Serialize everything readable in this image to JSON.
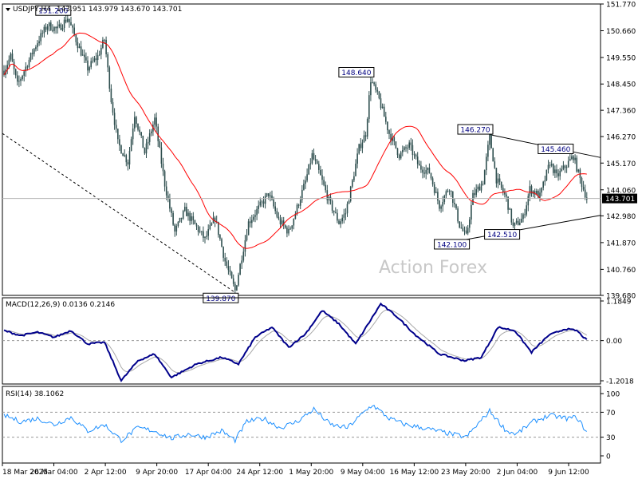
{
  "chart_data": [
    {
      "type": "candlestick",
      "symbol_title": "USDJPY,H4",
      "ohlc_readout": "143.951 143.979 143.670 143.701",
      "watermark": "Action Forex",
      "last_price": 143.701,
      "last_price_label": "143.701",
      "ylim": [
        139.68,
        151.77
      ],
      "y_ticks": [
        "151.770",
        "150.660",
        "149.550",
        "148.450",
        "147.360",
        "146.270",
        "145.170",
        "144.060",
        "142.980",
        "141.870",
        "140.760",
        "139.680"
      ],
      "x_ticks": [
        "18 Mar 2025",
        "26 Mar 04:00",
        "2 Apr 12:00",
        "9 Apr 20:00",
        "17 Apr 04:00",
        "24 Apr 12:00",
        "1 May 20:00",
        "9 May 04:00",
        "16 May 12:00",
        "23 May 20:00",
        "2 Jun 04:00",
        "9 Jun 12:00"
      ],
      "annotations": [
        {
          "text": "151.200",
          "value": 151.2
        },
        {
          "text": "148.640",
          "value": 148.64
        },
        {
          "text": "146.270",
          "value": 146.27
        },
        {
          "text": "145.460",
          "value": 145.46
        },
        {
          "text": "142.510",
          "value": 142.51
        },
        {
          "text": "142.100",
          "value": 142.1
        },
        {
          "text": "139.870",
          "value": 139.87
        }
      ],
      "price_path": [
        {
          "b": 0,
          "p": 149.0
        },
        {
          "b": 4,
          "p": 149.6
        },
        {
          "b": 8,
          "p": 148.4
        },
        {
          "b": 14,
          "p": 149.3
        },
        {
          "b": 20,
          "p": 150.2
        },
        {
          "b": 26,
          "p": 150.9
        },
        {
          "b": 32,
          "p": 150.7
        },
        {
          "b": 38,
          "p": 151.2
        },
        {
          "b": 44,
          "p": 150.1
        },
        {
          "b": 50,
          "p": 149.1
        },
        {
          "b": 56,
          "p": 149.6
        },
        {
          "b": 60,
          "p": 150.3
        },
        {
          "b": 64,
          "p": 147.8
        },
        {
          "b": 68,
          "p": 146.0
        },
        {
          "b": 74,
          "p": 145.2
        },
        {
          "b": 78,
          "p": 147.2
        },
        {
          "b": 84,
          "p": 145.6
        },
        {
          "b": 90,
          "p": 147.0
        },
        {
          "b": 96,
          "p": 144.3
        },
        {
          "b": 102,
          "p": 142.3
        },
        {
          "b": 108,
          "p": 143.2
        },
        {
          "b": 114,
          "p": 142.6
        },
        {
          "b": 120,
          "p": 142.0
        },
        {
          "b": 126,
          "p": 142.9
        },
        {
          "b": 132,
          "p": 141.1
        },
        {
          "b": 138,
          "p": 139.87
        },
        {
          "b": 142,
          "p": 141.3
        },
        {
          "b": 146,
          "p": 142.7
        },
        {
          "b": 152,
          "p": 143.3
        },
        {
          "b": 158,
          "p": 143.9
        },
        {
          "b": 164,
          "p": 142.8
        },
        {
          "b": 170,
          "p": 142.3
        },
        {
          "b": 174,
          "p": 143.1
        },
        {
          "b": 180,
          "p": 144.4
        },
        {
          "b": 184,
          "p": 145.5
        },
        {
          "b": 188,
          "p": 144.8
        },
        {
          "b": 194,
          "p": 143.6
        },
        {
          "b": 200,
          "p": 142.7
        },
        {
          "b": 204,
          "p": 143.1
        },
        {
          "b": 208,
          "p": 144.4
        },
        {
          "b": 212,
          "p": 145.8
        },
        {
          "b": 216,
          "p": 146.4
        },
        {
          "b": 219,
          "p": 148.64
        },
        {
          "b": 224,
          "p": 147.8
        },
        {
          "b": 230,
          "p": 146.4
        },
        {
          "b": 236,
          "p": 145.5
        },
        {
          "b": 242,
          "p": 145.9
        },
        {
          "b": 248,
          "p": 145.0
        },
        {
          "b": 254,
          "p": 144.8
        },
        {
          "b": 260,
          "p": 143.4
        },
        {
          "b": 266,
          "p": 144.2
        },
        {
          "b": 272,
          "p": 142.6
        },
        {
          "b": 276,
          "p": 142.1
        },
        {
          "b": 280,
          "p": 143.8
        },
        {
          "b": 286,
          "p": 144.4
        },
        {
          "b": 290,
          "p": 146.27
        },
        {
          "b": 294,
          "p": 144.5
        },
        {
          "b": 300,
          "p": 143.7
        },
        {
          "b": 304,
          "p": 142.51
        },
        {
          "b": 310,
          "p": 142.9
        },
        {
          "b": 314,
          "p": 144.1
        },
        {
          "b": 320,
          "p": 143.8
        },
        {
          "b": 326,
          "p": 145.2
        },
        {
          "b": 330,
          "p": 144.6
        },
        {
          "b": 336,
          "p": 145.1
        },
        {
          "b": 340,
          "p": 145.46
        },
        {
          "b": 344,
          "p": 144.5
        },
        {
          "b": 348,
          "p": 143.7
        }
      ],
      "indicator_panels": [
        {
          "title": "MACD(12,26,9) 0.0136 0.2146",
          "ylim": [
            -1.2018,
            1.1849
          ],
          "y_ticks": [
            "1.1849",
            "0.00",
            "-1.2018"
          ],
          "macd_path": [
            {
              "b": 0,
              "v": 0.3
            },
            {
              "b": 10,
              "v": 0.15
            },
            {
              "b": 20,
              "v": 0.25
            },
            {
              "b": 30,
              "v": 0.1
            },
            {
              "b": 40,
              "v": 0.3
            },
            {
              "b": 50,
              "v": -0.1
            },
            {
              "b": 60,
              "v": -0.05
            },
            {
              "b": 70,
              "v": -1.2
            },
            {
              "b": 80,
              "v": -0.6
            },
            {
              "b": 90,
              "v": -0.4
            },
            {
              "b": 100,
              "v": -1.1
            },
            {
              "b": 115,
              "v": -0.7
            },
            {
              "b": 130,
              "v": -0.5
            },
            {
              "b": 140,
              "v": -0.7
            },
            {
              "b": 150,
              "v": 0.1
            },
            {
              "b": 160,
              "v": 0.4
            },
            {
              "b": 170,
              "v": -0.2
            },
            {
              "b": 180,
              "v": 0.2
            },
            {
              "b": 190,
              "v": 0.9
            },
            {
              "b": 200,
              "v": 0.5
            },
            {
              "b": 210,
              "v": -0.1
            },
            {
              "b": 225,
              "v": 1.1
            },
            {
              "b": 235,
              "v": 0.7
            },
            {
              "b": 245,
              "v": 0.2
            },
            {
              "b": 260,
              "v": -0.4
            },
            {
              "b": 275,
              "v": -0.6
            },
            {
              "b": 285,
              "v": -0.5
            },
            {
              "b": 295,
              "v": 0.4
            },
            {
              "b": 305,
              "v": 0.3
            },
            {
              "b": 315,
              "v": -0.35
            },
            {
              "b": 325,
              "v": 0.15
            },
            {
              "b": 335,
              "v": 0.35
            },
            {
              "b": 342,
              "v": 0.3
            },
            {
              "b": 348,
              "v": 0.01
            }
          ]
        },
        {
          "title": "RSI(14) 38.1062",
          "ylim": [
            0,
            100
          ],
          "y_ticks": [
            "100",
            "70",
            "30",
            "0"
          ],
          "levels": [
            70,
            30
          ],
          "rsi_path": [
            {
              "b": 0,
              "v": 65
            },
            {
              "b": 10,
              "v": 55
            },
            {
              "b": 20,
              "v": 60
            },
            {
              "b": 30,
              "v": 50
            },
            {
              "b": 40,
              "v": 62
            },
            {
              "b": 50,
              "v": 40
            },
            {
              "b": 60,
              "v": 50
            },
            {
              "b": 70,
              "v": 25
            },
            {
              "b": 80,
              "v": 45
            },
            {
              "b": 90,
              "v": 40
            },
            {
              "b": 100,
              "v": 28
            },
            {
              "b": 110,
              "v": 35
            },
            {
              "b": 120,
              "v": 30
            },
            {
              "b": 130,
              "v": 40
            },
            {
              "b": 138,
              "v": 25
            },
            {
              "b": 145,
              "v": 55
            },
            {
              "b": 155,
              "v": 60
            },
            {
              "b": 165,
              "v": 45
            },
            {
              "b": 175,
              "v": 55
            },
            {
              "b": 185,
              "v": 75
            },
            {
              "b": 195,
              "v": 50
            },
            {
              "b": 205,
              "v": 45
            },
            {
              "b": 215,
              "v": 70
            },
            {
              "b": 220,
              "v": 82
            },
            {
              "b": 230,
              "v": 60
            },
            {
              "b": 240,
              "v": 50
            },
            {
              "b": 250,
              "v": 45
            },
            {
              "b": 262,
              "v": 38
            },
            {
              "b": 276,
              "v": 30
            },
            {
              "b": 290,
              "v": 72
            },
            {
              "b": 300,
              "v": 40
            },
            {
              "b": 306,
              "v": 35
            },
            {
              "b": 316,
              "v": 55
            },
            {
              "b": 326,
              "v": 65
            },
            {
              "b": 336,
              "v": 60
            },
            {
              "b": 342,
              "v": 62
            },
            {
              "b": 348,
              "v": 38
            }
          ]
        }
      ],
      "colors": {
        "price": "#2f4f4f",
        "moving_average": "#ff0000",
        "macd": "#00008b",
        "macd_signal": "#a9a9a9",
        "rsi": "#1e90ff",
        "trendline": "#000000",
        "watermark": "#c8c8c8"
      }
    }
  ]
}
